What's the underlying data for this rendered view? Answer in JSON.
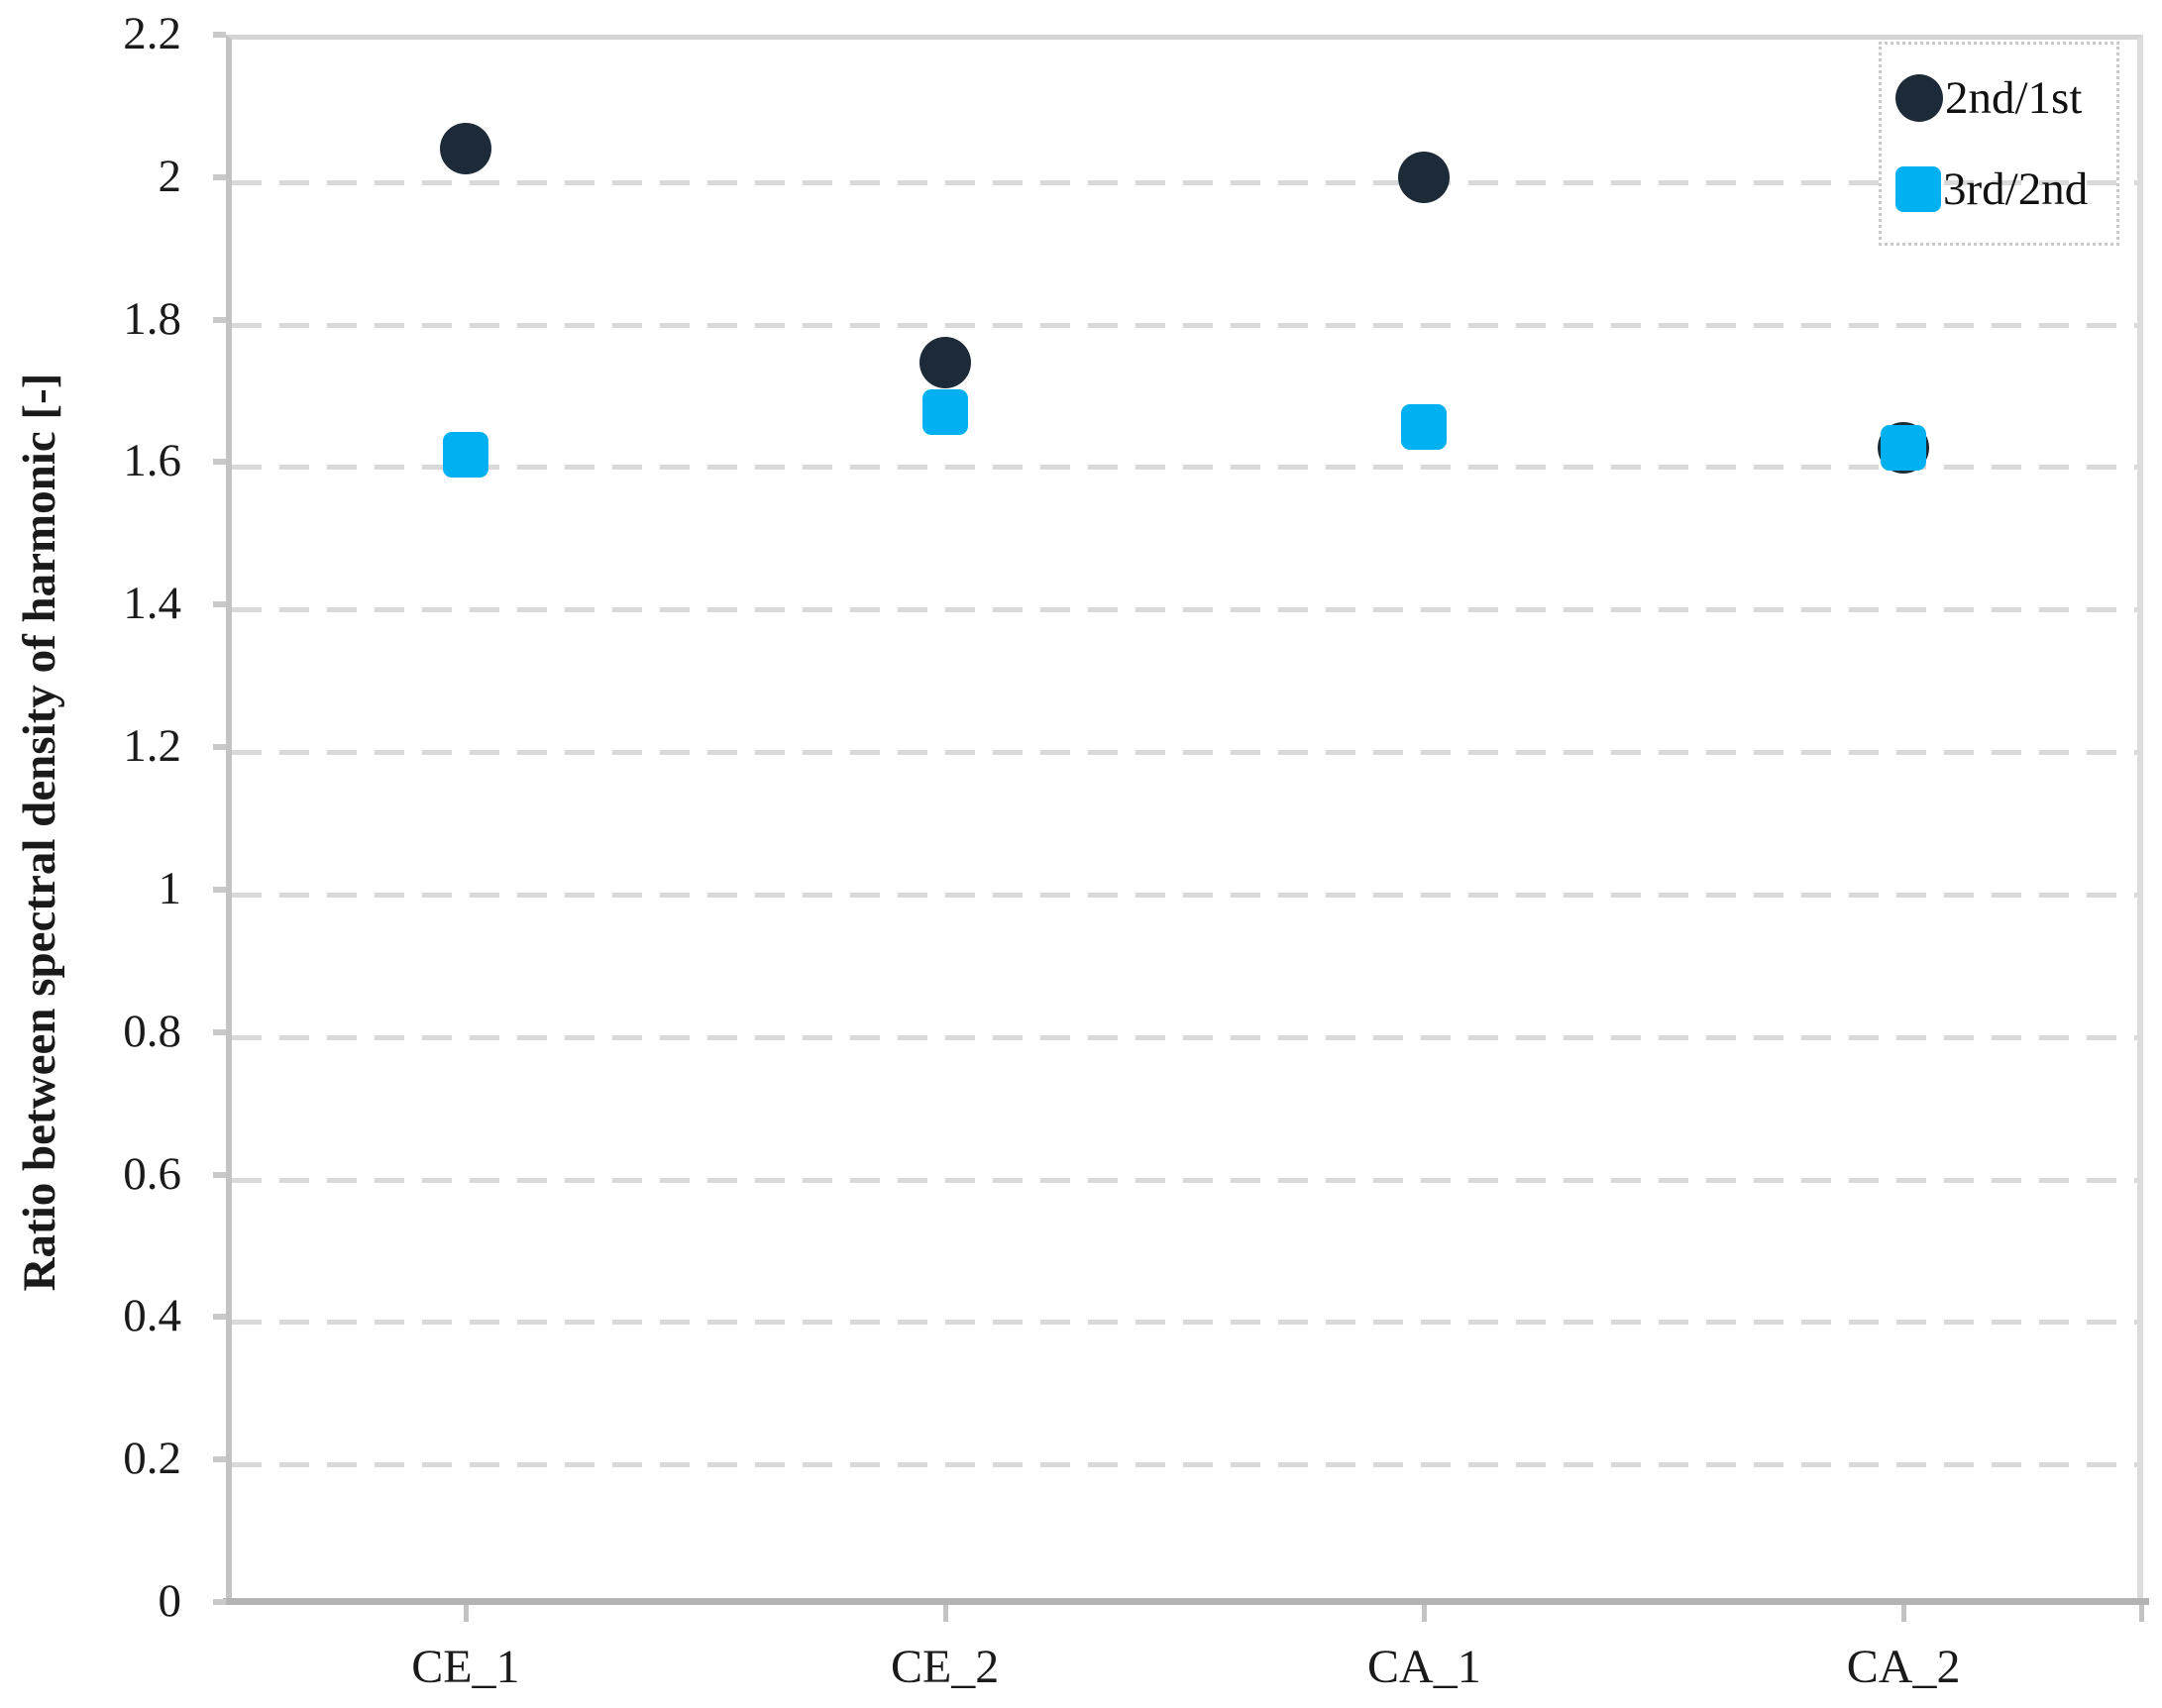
{
  "chart_data": {
    "type": "scatter",
    "categories": [
      "CE_1",
      "CE_2",
      "CA_1",
      "CA_2"
    ],
    "series": [
      {
        "name": "2nd/1st",
        "marker": "circle",
        "color": "#1d2b38",
        "values": [
          2.04,
          1.74,
          2.0,
          1.62
        ]
      },
      {
        "name": "3rd/2nd",
        "marker": "square",
        "color": "#00b0f0",
        "values": [
          1.61,
          1.67,
          1.65,
          1.62
        ]
      }
    ],
    "title": "",
    "xlabel": "",
    "ylabel": "Ratio between spectral density of harmonic [-]",
    "ylim": [
      0,
      2.2
    ],
    "ytick_step": 0.2,
    "ytick_labels": [
      "0",
      "0.2",
      "0.4",
      "0.6",
      "0.8",
      "1",
      "1.2",
      "1.4",
      "1.6",
      "1.8",
      "2",
      "2.2"
    ],
    "grid": "horizontal dashed gridlines at each 0.2 step",
    "legend_position": "top-right"
  },
  "colors": {
    "gridline": "#d9d9d9",
    "axis_left": "#c3c3c3",
    "axis_bottom": "#b3b3b3",
    "plot_border": "#d4d4d4",
    "legend_border": "#c9c9c9",
    "text": "#1a1a1a",
    "background": "#ffffff"
  }
}
